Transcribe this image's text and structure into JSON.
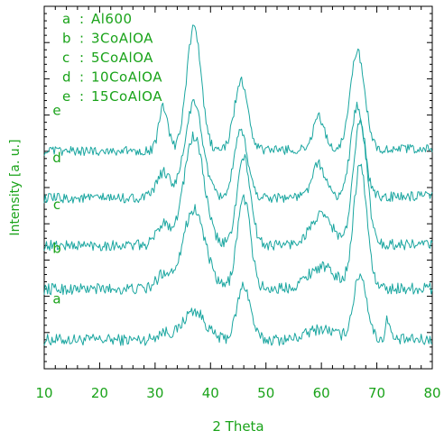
{
  "chart_data": {
    "type": "line",
    "xlabel": "2  Theta",
    "ylabel": "Intensity [a. u.]",
    "xlim": [
      10,
      80
    ],
    "ylim": [
      0,
      100
    ],
    "x_ticks": [
      10,
      20,
      30,
      40,
      50,
      60,
      70,
      80
    ],
    "legend_position": "top-left",
    "legend": [
      {
        "key": "a",
        "sep": ":",
        "label": "Al600"
      },
      {
        "key": "b",
        "sep": ":",
        "label": "3CoAlOA"
      },
      {
        "key": "c",
        "sep": ":",
        "label": "5CoAlOA"
      },
      {
        "key": "d",
        "sep": ":",
        "label": "10CoAlOA"
      },
      {
        "key": "e",
        "sep": ":",
        "label": "15CoAlOA"
      }
    ],
    "series": [
      {
        "name": "a",
        "baseline": 8,
        "noise": 1.6,
        "peaks": [
          [
            31.5,
            2,
            1.2
          ],
          [
            37,
            8,
            2.0
          ],
          [
            46,
            15,
            1.2
          ],
          [
            60,
            3,
            2.5
          ],
          [
            67,
            18,
            1.2
          ],
          [
            72,
            6,
            0.4
          ]
        ]
      },
      {
        "name": "b",
        "baseline": 22,
        "noise": 1.6,
        "peaks": [
          [
            31.5,
            4,
            1.2
          ],
          [
            37,
            22,
            2.0
          ],
          [
            46,
            25,
            1.2
          ],
          [
            60,
            6,
            2.5
          ],
          [
            67,
            34,
            1.2
          ]
        ]
      },
      {
        "name": "c",
        "baseline": 34,
        "noise": 1.5,
        "peaks": [
          [
            31.5,
            6,
            1.2
          ],
          [
            37,
            30,
            1.8
          ],
          [
            46,
            24,
            1.2
          ],
          [
            60,
            8,
            2.0
          ],
          [
            67,
            35,
            1.2
          ]
        ]
      },
      {
        "name": "d",
        "baseline": 47,
        "noise": 1.4,
        "peaks": [
          [
            31.5,
            7,
            1.2
          ],
          [
            37,
            26,
            1.6
          ],
          [
            45.5,
            18,
            1.2
          ],
          [
            59.5,
            9,
            1.2
          ],
          [
            66.5,
            25,
            1.2
          ]
        ]
      },
      {
        "name": "e",
        "baseline": 60,
        "noise": 1.3,
        "peaks": [
          [
            31.5,
            12,
            0.8
          ],
          [
            37,
            34,
            1.3
          ],
          [
            45.5,
            19,
            1.2
          ],
          [
            59.5,
            9,
            1.0
          ],
          [
            66.5,
            27,
            1.3
          ]
        ]
      }
    ],
    "colors": {
      "line": "#1aa6a0",
      "text": "#1aa31a",
      "axis": "#000000"
    }
  }
}
